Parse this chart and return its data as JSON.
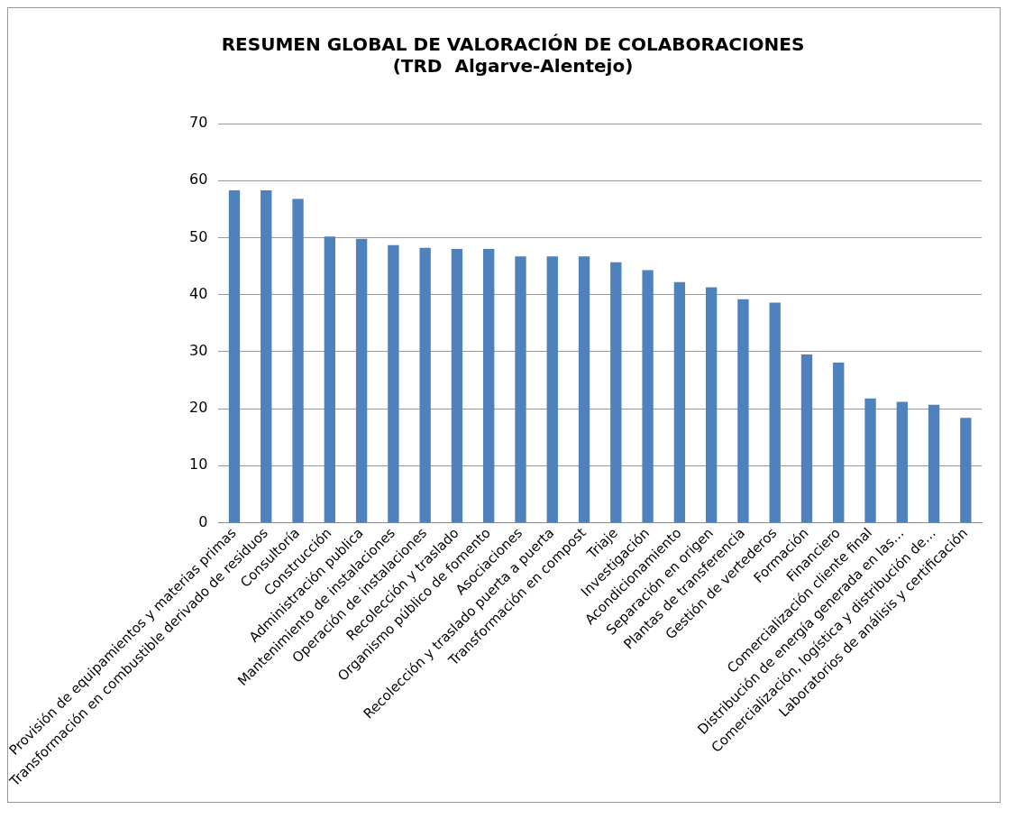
{
  "chart_data": {
    "type": "bar",
    "title": [
      "RESUMEN GLOBAL DE VALORACIÓN DE COLABORACIONES",
      "(TRD  Algarve-Alentejo)"
    ],
    "categories": [
      "Provisión de equipamientos y materias primas",
      "Transformación en combustible derivado de residuos",
      "Consultoría",
      "Construcción",
      "Administración publica",
      "Mantenimiento de instalaciones",
      "Operación de instalaciones",
      "Recolección y traslado",
      "Organismo público de fomento",
      "Asociaciones",
      "Recolección y traslado puerta a puerta",
      "Transformación en compost",
      "Triaje",
      "Investigación",
      "Acondicionamiento",
      "Separación en origen",
      "Plantas de transferencia",
      "Gestión de vertederos",
      "Formación",
      "Financiero",
      "Comercialización cliente final",
      "Distribución de energía generada en las…",
      "Comercialización, logística y distribución de…",
      "Laboratorios de análisis y certificación"
    ],
    "values": [
      58.3,
      58.3,
      56.8,
      50.2,
      49.8,
      48.7,
      48.2,
      48.0,
      48.0,
      46.7,
      46.7,
      46.7,
      45.7,
      44.3,
      42.2,
      41.3,
      39.2,
      38.6,
      29.5,
      28.1,
      21.8,
      21.2,
      20.7,
      18.4
    ],
    "color": "#4f81bd",
    "ylim": [
      0,
      70
    ],
    "yticks": [
      0,
      10,
      20,
      30,
      40,
      50,
      60,
      70
    ],
    "grid": "y",
    "legend": false
  }
}
